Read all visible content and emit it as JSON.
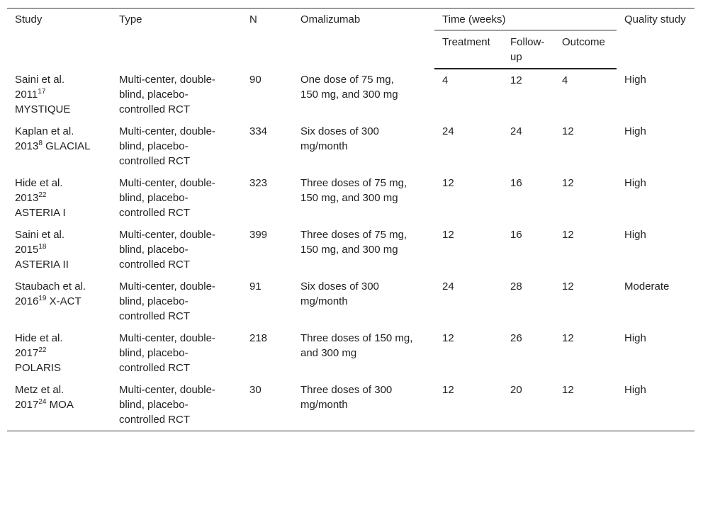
{
  "header": {
    "study": "Study",
    "type": "Type",
    "n": "N",
    "omalizumab": "Omalizumab",
    "time": "Time (weeks)",
    "quality": "Quality study",
    "treatment": "Treatment",
    "followup": "Follow-up",
    "outcome": "Outcome"
  },
  "rows": [
    {
      "study": {
        "name": "Saini et al. 2011",
        "ref": "17",
        "label": "MYSTIQUE"
      },
      "type": "Multi-center, double-blind, placebo-controlled RCT",
      "n": 90,
      "omalizumab": "One dose of 75 mg, 150 mg, and 300 mg",
      "treatment": 4,
      "followup": 12,
      "outcome": 4,
      "quality": "High"
    },
    {
      "study": {
        "name": "Kaplan et al. 2013",
        "ref": "8",
        "label": "GLACIAL"
      },
      "type": "Multi-center, double-blind, placebo-controlled RCT",
      "n": 334,
      "omalizumab": "Six doses of 300 mg/month",
      "treatment": 24,
      "followup": 24,
      "outcome": 12,
      "quality": "High"
    },
    {
      "study": {
        "name": "Hide et al. 2013",
        "ref": "22",
        "label": "ASTERIA I"
      },
      "type": "Multi-center, double-blind, placebo-controlled RCT",
      "n": 323,
      "omalizumab": "Three doses of 75 mg, 150 mg, and 300 mg",
      "treatment": 12,
      "followup": 16,
      "outcome": 12,
      "quality": "High"
    },
    {
      "study": {
        "name": "Saini et al. 2015",
        "ref": "18",
        "label": "ASTERIA II"
      },
      "type": "Multi-center, double-blind, placebo-controlled RCT",
      "n": 399,
      "omalizumab": "Three doses of 75 mg, 150 mg, and 300 mg",
      "treatment": 12,
      "followup": 16,
      "outcome": 12,
      "quality": "High"
    },
    {
      "study": {
        "name": "Staubach et al. 2016",
        "ref": "19",
        "label": "X-ACT"
      },
      "type": "Multi-center, double-blind, placebo-controlled RCT",
      "n": 91,
      "omalizumab": "Six doses of 300 mg/month",
      "treatment": 24,
      "followup": 28,
      "outcome": 12,
      "quality": "Moderate"
    },
    {
      "study": {
        "name": "Hide et al. 2017",
        "ref": "22",
        "label": "POLARIS"
      },
      "type": "Multi-center, double-blind, placebo-controlled RCT",
      "n": 218,
      "omalizumab": "Three doses of 150 mg, and 300 mg",
      "treatment": 12,
      "followup": 26,
      "outcome": 12,
      "quality": "High"
    },
    {
      "study": {
        "name": "Metz et al. 2017",
        "ref": "24",
        "label": "MOA"
      },
      "type": "Multi-center, double-blind, placebo-controlled RCT",
      "n": 30,
      "omalizumab": "Three doses of 300 mg/month",
      "treatment": 12,
      "followup": 20,
      "outcome": 12,
      "quality": "High"
    }
  ]
}
